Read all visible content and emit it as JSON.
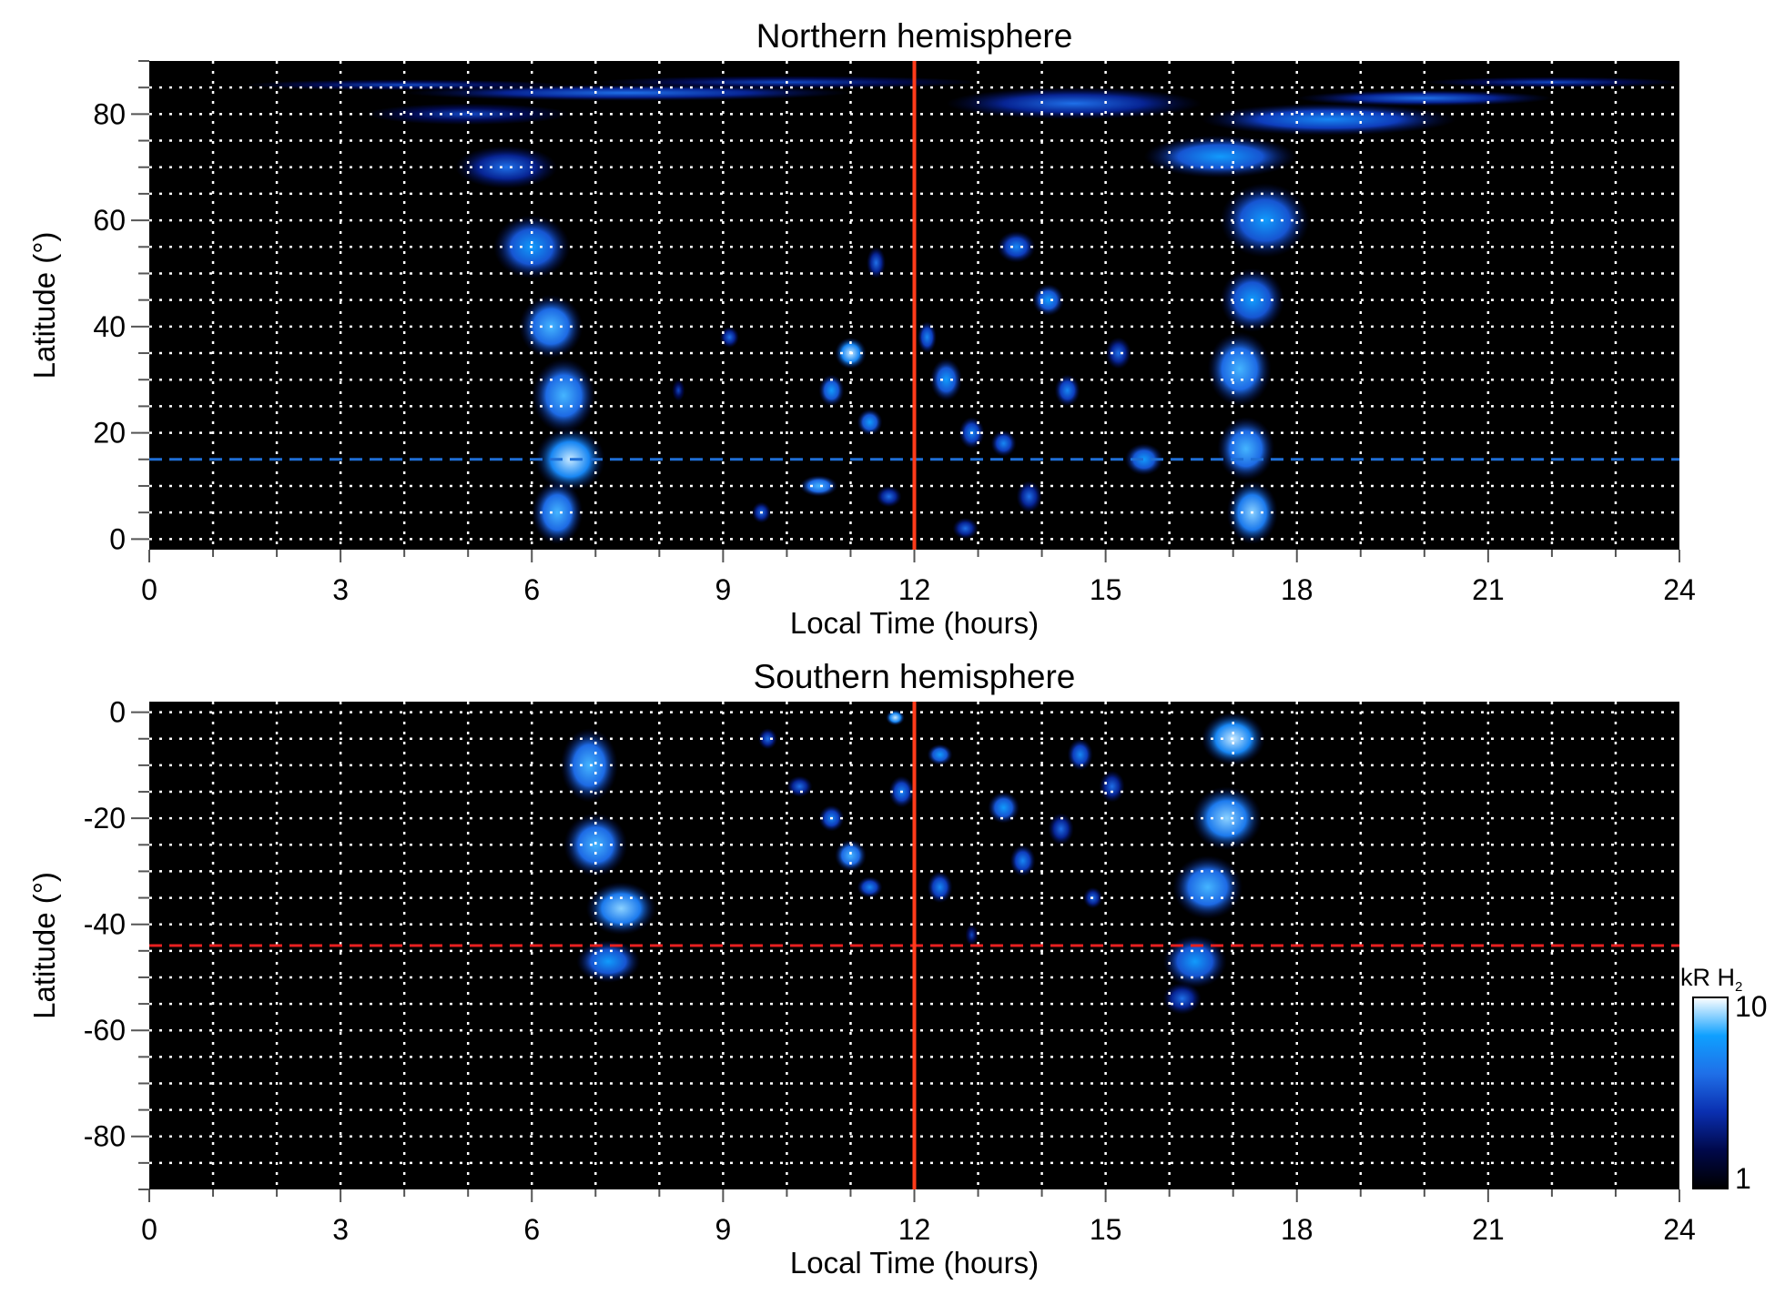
{
  "chart_data": [
    {
      "type": "heatmap",
      "title": "Northern hemisphere",
      "xlabel": "Local Time (hours)",
      "ylabel": "Latitude (°)",
      "xlim": [
        0,
        24
      ],
      "ylim": [
        -2,
        90
      ],
      "xticks": [
        "0",
        "3",
        "6",
        "9",
        "12",
        "15",
        "18",
        "21",
        "24"
      ],
      "yticks": [
        {
          "v": 0,
          "label": "0"
        },
        {
          "v": 20,
          "label": "20"
        },
        {
          "v": 40,
          "label": "40"
        },
        {
          "v": 60,
          "label": "60"
        },
        {
          "v": 80,
          "label": "80"
        }
      ],
      "grid": {
        "on": true,
        "x_step_hours": 1,
        "y_step_deg": 5,
        "style": "dotted",
        "color": "#ffffff"
      },
      "background": "#000000",
      "vertical_line": {
        "x": 12,
        "color": "#ff3b1a"
      },
      "horizontal_line": {
        "y": 15,
        "color": "#1f6fd6",
        "style": "dashed"
      },
      "emission_regions": [
        [
          6.6,
          15,
          0.55,
          6,
          9
        ],
        [
          6.4,
          5,
          0.4,
          6,
          7
        ],
        [
          6.5,
          27,
          0.5,
          7,
          7
        ],
        [
          6.3,
          40,
          0.5,
          6,
          7
        ],
        [
          6.0,
          55,
          0.6,
          6,
          6
        ],
        [
          5.6,
          70,
          0.8,
          4,
          4
        ],
        [
          5.0,
          80,
          1.6,
          2,
          3
        ],
        [
          7.5,
          84,
          3.5,
          1.5,
          4
        ],
        [
          4.0,
          85.5,
          2.5,
          1,
          3
        ],
        [
          10,
          86,
          3,
          1.2,
          3
        ],
        [
          17.3,
          5,
          0.4,
          6,
          8
        ],
        [
          17.2,
          17,
          0.45,
          6,
          7
        ],
        [
          17.1,
          32,
          0.5,
          7,
          7
        ],
        [
          17.3,
          45,
          0.5,
          6,
          6
        ],
        [
          17.5,
          60,
          0.7,
          7,
          6
        ],
        [
          16.8,
          72,
          1.2,
          4,
          6
        ],
        [
          18.5,
          79,
          2,
          3,
          5
        ],
        [
          20,
          83,
          2,
          1.5,
          4
        ],
        [
          22,
          86,
          2,
          1,
          3
        ],
        [
          14.5,
          82,
          2,
          3,
          4
        ],
        [
          11,
          35,
          0.25,
          3,
          9
        ],
        [
          10.7,
          28,
          0.2,
          3,
          6
        ],
        [
          11.3,
          22,
          0.2,
          2.5,
          6
        ],
        [
          10.5,
          10,
          0.3,
          2,
          7
        ],
        [
          9.6,
          5,
          0.15,
          2,
          4
        ],
        [
          12.5,
          30,
          0.25,
          4,
          6
        ],
        [
          12.2,
          38,
          0.15,
          3,
          5
        ],
        [
          12.9,
          20,
          0.2,
          3,
          5
        ],
        [
          13.4,
          18,
          0.2,
          2.5,
          5
        ],
        [
          13.8,
          8,
          0.2,
          3,
          4
        ],
        [
          14.1,
          45,
          0.25,
          3,
          6
        ],
        [
          13.6,
          55,
          0.3,
          3,
          5
        ],
        [
          15.6,
          15,
          0.3,
          3,
          6
        ],
        [
          15.2,
          35,
          0.2,
          3,
          4
        ],
        [
          14.4,
          28,
          0.2,
          3,
          5
        ],
        [
          11.4,
          52,
          0.15,
          3,
          4
        ],
        [
          9.1,
          38,
          0.15,
          2,
          4
        ],
        [
          8.3,
          28,
          0.1,
          2,
          3
        ],
        [
          12.8,
          2,
          0.2,
          2,
          4
        ],
        [
          11.6,
          8,
          0.2,
          2,
          4
        ]
      ]
    },
    {
      "type": "heatmap",
      "title": "Southern hemisphere",
      "xlabel": "Local Time (hours)",
      "ylabel": "Latitude (°)",
      "xlim": [
        0,
        24
      ],
      "ylim": [
        -90,
        2
      ],
      "xticks": [
        "0",
        "3",
        "6",
        "9",
        "12",
        "15",
        "18",
        "21",
        "24"
      ],
      "yticks": [
        {
          "v": 0,
          "label": "0"
        },
        {
          "v": -20,
          "label": "-20"
        },
        {
          "v": -40,
          "label": "-40"
        },
        {
          "v": -60,
          "label": "-60"
        },
        {
          "v": -80,
          "label": "-80"
        }
      ],
      "grid": {
        "on": true,
        "x_step_hours": 1,
        "y_step_deg": 5,
        "style": "dotted",
        "color": "#ffffff"
      },
      "background": "#000000",
      "vertical_line": {
        "x": 12,
        "color": "#ff3b1a"
      },
      "horizontal_line": {
        "y": -44,
        "color": "#e82020",
        "style": "dashed"
      },
      "emission_regions": [
        [
          6.9,
          -10,
          0.45,
          7,
          7
        ],
        [
          7.0,
          -25,
          0.5,
          6,
          7
        ],
        [
          7.4,
          -37,
          0.55,
          5,
          8
        ],
        [
          7.2,
          -47,
          0.5,
          4,
          6
        ],
        [
          17.0,
          -5,
          0.5,
          5,
          9
        ],
        [
          16.9,
          -20,
          0.55,
          6,
          8
        ],
        [
          16.6,
          -33,
          0.55,
          6,
          7
        ],
        [
          16.4,
          -47,
          0.5,
          5,
          6
        ],
        [
          16.2,
          -54,
          0.3,
          3,
          4
        ],
        [
          11.0,
          -27,
          0.25,
          3,
          7
        ],
        [
          10.7,
          -20,
          0.2,
          2.5,
          5
        ],
        [
          11.8,
          -15,
          0.2,
          3,
          5
        ],
        [
          12.4,
          -8,
          0.2,
          2,
          6
        ],
        [
          11.7,
          -1,
          0.15,
          1.5,
          9
        ],
        [
          13.4,
          -18,
          0.25,
          3,
          6
        ],
        [
          13.7,
          -28,
          0.2,
          3,
          5
        ],
        [
          12.4,
          -33,
          0.2,
          3,
          5
        ],
        [
          11.3,
          -33,
          0.2,
          2,
          5
        ],
        [
          14.6,
          -8,
          0.2,
          3,
          5
        ],
        [
          14.3,
          -22,
          0.2,
          3,
          4
        ],
        [
          15.1,
          -14,
          0.2,
          3,
          4
        ],
        [
          10.2,
          -14,
          0.2,
          2,
          4
        ],
        [
          9.7,
          -5,
          0.15,
          2,
          4
        ],
        [
          14.8,
          -35,
          0.15,
          2,
          4
        ],
        [
          12.9,
          -42,
          0.1,
          2,
          3
        ]
      ]
    }
  ],
  "colorbar": {
    "label_main": "kR H",
    "label_sub": "2",
    "min_label": "1",
    "max_label": "10",
    "min": 1,
    "max": 10,
    "scale": "log",
    "colors": [
      "#000000",
      "#00084a",
      "#0a2fb0",
      "#1f6fe8",
      "#0fa0ff",
      "#ffffff"
    ]
  }
}
